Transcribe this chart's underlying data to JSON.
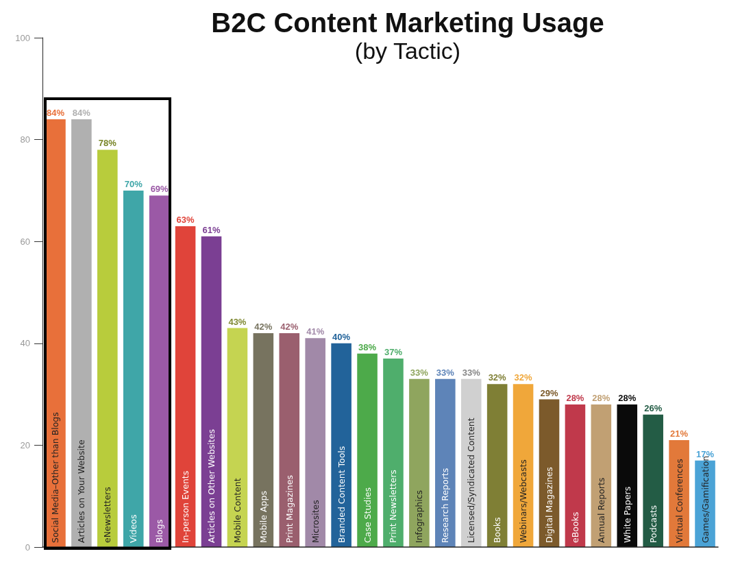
{
  "chart_data": {
    "type": "bar",
    "title": "B2C Content Marketing Usage",
    "subtitle": "(by Tactic)",
    "categories": [
      "Social Media–Other than Blogs",
      "Articles on Your Website",
      "eNewsletters",
      "Videos",
      "Blogs",
      "In-person Events",
      "Articles on Other Websites",
      "Mobile Content",
      "Mobile Apps",
      "Print Magazines",
      "Microsites",
      "Branded Content Tools",
      "Case Studies",
      "Print Newsletters",
      "Infographics",
      "Research Reports",
      "Licensed/Syndicated Content",
      "Books",
      "Webinars/Webcasts",
      "Digital Magazines",
      "eBooks",
      "Annual Reports",
      "White Papers",
      "Podcasts",
      "Virtual Conferences",
      "Games/Gamification"
    ],
    "values": [
      84,
      84,
      78,
      70,
      69,
      63,
      61,
      43,
      42,
      42,
      41,
      40,
      38,
      37,
      33,
      33,
      33,
      32,
      32,
      29,
      28,
      28,
      28,
      26,
      21,
      17
    ],
    "value_labels": [
      "84%",
      "84%",
      "78%",
      "70%",
      "69%",
      "63%",
      "61%",
      "43%",
      "42%",
      "42%",
      "41%",
      "40%",
      "38%",
      "37%",
      "33%",
      "33%",
      "33%",
      "32%",
      "32%",
      "29%",
      "28%",
      "28%",
      "28%",
      "26%",
      "21%",
      "17%"
    ],
    "colors": [
      "#e8703a",
      "#b0b0b0",
      "#b8cc3c",
      "#3fa6a8",
      "#9b59a6",
      "#e0443a",
      "#7b3f93",
      "#c5d451",
      "#77735f",
      "#9a5f6e",
      "#a189a8",
      "#22639a",
      "#4daa4a",
      "#4fae6c",
      "#8fa55e",
      "#5e84b8",
      "#d0d0d0",
      "#7f7f35",
      "#f0a73a",
      "#7c5a2b",
      "#c0394b",
      "#c1a073",
      "#0a0a0a",
      "#235c45",
      "#e2793a",
      "#4ba3d6"
    ],
    "ylim": [
      0,
      100
    ],
    "yticks": [
      0,
      20,
      40,
      60,
      80,
      100
    ],
    "grid": false
  }
}
